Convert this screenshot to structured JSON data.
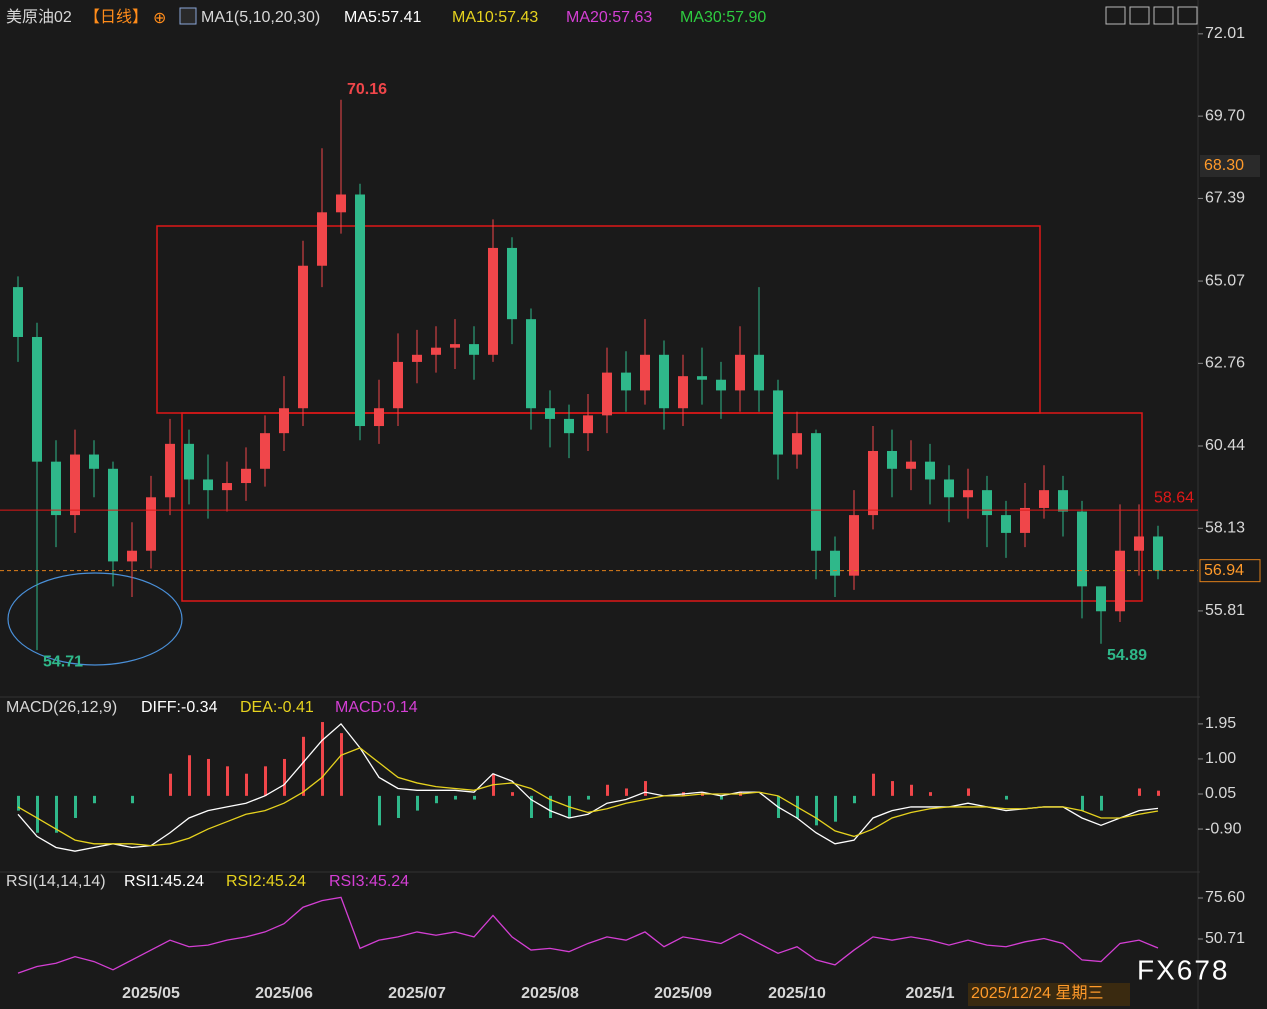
{
  "header": {
    "title": "美原油02",
    "period": "【日线】",
    "ma_label": "MA1(5,10,20,30)",
    "ma5": "MA5:57.41",
    "ma10": "MA10:57.43",
    "ma20": "MA20:57.63",
    "ma30": "MA30:57.90",
    "date": "2025/12/24 星期三",
    "brand": "FX678"
  },
  "chart_data": [
    {
      "type": "candlestick",
      "categories": [
        null,
        null,
        null,
        null,
        null,
        null,
        null,
        "2025/05",
        null,
        null,
        null,
        null,
        null,
        null,
        "2025/06",
        null,
        null,
        null,
        null,
        null,
        null,
        "2025/07",
        null,
        null,
        null,
        null,
        null,
        null,
        "2025/08",
        null,
        null,
        null,
        null,
        null,
        null,
        "2025/09",
        null,
        null,
        null,
        null,
        null,
        "2025/10",
        null,
        null,
        null,
        null,
        null,
        null,
        "2025/1",
        null,
        null,
        null,
        null,
        null,
        null,
        null,
        null,
        null,
        null,
        null,
        null
      ],
      "open": [
        64.9,
        63.5,
        60.0,
        58.5,
        60.2,
        59.8,
        57.2,
        57.5,
        59.0,
        60.5,
        59.5,
        59.2,
        59.4,
        59.8,
        60.8,
        61.5,
        65.5,
        67.0,
        67.5,
        61.0,
        61.5,
        62.8,
        63.0,
        63.2,
        63.3,
        63.0,
        66.0,
        64.0,
        61.5,
        61.2,
        60.8,
        61.3,
        62.5,
        62.0,
        63.0,
        61.5,
        62.4,
        62.3,
        62.0,
        63.0,
        62.0,
        60.2,
        60.8,
        57.5,
        56.8,
        58.5,
        60.3,
        59.8,
        60.0,
        59.5,
        59.0,
        59.2,
        58.5,
        58.0,
        58.7,
        59.2,
        58.6,
        56.5,
        55.8,
        57.5,
        57.9
      ],
      "high": [
        65.2,
        63.9,
        60.6,
        60.9,
        60.6,
        60.0,
        58.3,
        59.6,
        61.2,
        60.9,
        60.2,
        60.0,
        60.4,
        61.3,
        62.4,
        66.2,
        68.8,
        70.16,
        67.8,
        62.3,
        63.6,
        63.7,
        63.8,
        64.0,
        63.8,
        66.8,
        66.3,
        64.3,
        62.0,
        61.6,
        61.9,
        63.2,
        63.1,
        64.0,
        63.4,
        63.0,
        63.2,
        62.8,
        63.8,
        64.9,
        62.3,
        61.4,
        60.9,
        57.9,
        59.2,
        61.0,
        60.9,
        60.6,
        60.5,
        59.9,
        59.8,
        59.6,
        58.9,
        59.4,
        59.9,
        59.6,
        58.9,
        56.4,
        58.8,
        58.8,
        58.2
      ],
      "low": [
        62.8,
        54.71,
        57.6,
        58.0,
        59.0,
        56.5,
        56.2,
        57.0,
        58.5,
        58.8,
        58.4,
        58.6,
        58.9,
        59.3,
        60.3,
        61.0,
        64.9,
        66.4,
        60.6,
        60.5,
        61.0,
        62.2,
        62.5,
        62.6,
        62.3,
        62.8,
        63.3,
        60.9,
        60.4,
        60.1,
        60.3,
        60.8,
        61.4,
        61.6,
        60.9,
        61.0,
        61.6,
        61.2,
        61.4,
        61.4,
        59.5,
        59.8,
        56.7,
        56.2,
        56.4,
        58.1,
        59.0,
        59.2,
        58.8,
        58.3,
        58.4,
        57.6,
        57.3,
        57.6,
        58.4,
        57.9,
        55.6,
        54.89,
        55.5,
        56.8,
        56.7
      ],
      "close": [
        63.5,
        60.0,
        58.5,
        60.2,
        59.8,
        57.2,
        57.5,
        59.0,
        60.5,
        59.5,
        59.2,
        59.4,
        59.8,
        60.8,
        61.5,
        65.5,
        67.0,
        67.5,
        61.0,
        61.5,
        62.8,
        63.0,
        63.2,
        63.3,
        63.0,
        66.0,
        64.0,
        61.5,
        61.2,
        60.8,
        61.3,
        62.5,
        62.0,
        63.0,
        61.5,
        62.4,
        62.3,
        62.0,
        63.0,
        62.0,
        60.2,
        60.8,
        57.5,
        56.8,
        58.5,
        60.3,
        59.8,
        60.0,
        59.5,
        59.0,
        59.2,
        58.5,
        58.0,
        58.7,
        59.2,
        58.6,
        56.5,
        55.8,
        57.5,
        57.9,
        56.94
      ],
      "up_color": "#f0464a",
      "down_color": "#2fb88a",
      "ylim": [
        53.59,
        72.96
      ],
      "yticks": [
        {
          "value": 72.01,
          "label": "72.01"
        },
        {
          "value": 69.7,
          "label": "69.70"
        },
        {
          "value": 67.39,
          "label": "67.39"
        },
        {
          "value": 65.07,
          "label": "65.07"
        },
        {
          "value": 62.76,
          "label": "62.76"
        },
        {
          "value": 60.44,
          "label": "60.44"
        },
        {
          "value": 58.13,
          "label": "58.13"
        },
        {
          "value": 55.81,
          "label": "55.81"
        }
      ],
      "level": {
        "value": 58.64,
        "label": "58.64"
      },
      "marker": {
        "value": 68.3,
        "label": "68.30"
      }
    },
    {
      "type": "macd",
      "label": "MACD(26,12,9)",
      "diff_label": "DIFF:-0.34",
      "dea_label": "DEA:-0.41",
      "macd_label": "MACD:0.14",
      "diff": [
        -0.5,
        -1.1,
        -1.4,
        -1.5,
        -1.4,
        -1.3,
        -1.4,
        -1.35,
        -1.0,
        -0.6,
        -0.4,
        -0.3,
        -0.2,
        0.0,
        0.3,
        0.9,
        1.5,
        1.95,
        1.3,
        0.5,
        0.2,
        0.15,
        0.15,
        0.15,
        0.1,
        0.6,
        0.4,
        -0.1,
        -0.4,
        -0.6,
        -0.5,
        -0.2,
        -0.1,
        0.1,
        0.0,
        0.05,
        0.1,
        0.0,
        0.1,
        0.1,
        -0.3,
        -0.6,
        -1.0,
        -1.3,
        -1.2,
        -0.6,
        -0.4,
        -0.3,
        -0.3,
        -0.3,
        -0.2,
        -0.3,
        -0.4,
        -0.35,
        -0.3,
        -0.3,
        -0.6,
        -0.8,
        -0.6,
        -0.4,
        -0.34
      ],
      "dea": [
        -0.3,
        -0.6,
        -0.9,
        -1.2,
        -1.3,
        -1.3,
        -1.3,
        -1.35,
        -1.3,
        -1.15,
        -0.9,
        -0.7,
        -0.5,
        -0.4,
        -0.2,
        0.1,
        0.5,
        1.1,
        1.3,
        0.9,
        0.5,
        0.35,
        0.25,
        0.2,
        0.15,
        0.3,
        0.35,
        0.2,
        -0.1,
        -0.3,
        -0.45,
        -0.35,
        -0.2,
        -0.1,
        0.0,
        0.0,
        0.05,
        0.05,
        0.05,
        0.1,
        0.0,
        -0.3,
        -0.6,
        -0.95,
        -1.1,
        -0.9,
        -0.6,
        -0.45,
        -0.35,
        -0.3,
        -0.3,
        -0.3,
        -0.35,
        -0.35,
        -0.3,
        -0.3,
        -0.4,
        -0.6,
        -0.6,
        -0.5,
        -0.41
      ],
      "macd": [
        -0.4,
        -1.0,
        -1.0,
        -0.6,
        -0.2,
        0.0,
        -0.2,
        0.0,
        0.6,
        1.1,
        1.0,
        0.8,
        0.6,
        0.8,
        1.0,
        1.6,
        2.0,
        1.7,
        0.0,
        -0.8,
        -0.6,
        -0.4,
        -0.2,
        -0.1,
        -0.1,
        0.6,
        0.1,
        -0.6,
        -0.6,
        -0.6,
        -0.1,
        0.3,
        0.2,
        0.4,
        0.0,
        0.1,
        0.1,
        -0.1,
        0.1,
        0.0,
        -0.6,
        -0.6,
        -0.8,
        -0.7,
        -0.2,
        0.6,
        0.4,
        0.3,
        0.1,
        0.0,
        0.2,
        0.0,
        -0.1,
        0.0,
        0.0,
        0.0,
        -0.4,
        -0.4,
        0.0,
        0.2,
        0.14
      ],
      "diff_color": "#ffffff",
      "dea_color": "#e6d21e",
      "ylim": [
        -2.01,
        2.11
      ],
      "yticks": [
        1.95,
        {
          "value": 1.0,
          "label": "1.00"
        },
        0.05,
        {
          "value": -0.9,
          "label": "-0.90"
        }
      ]
    },
    {
      "type": "line",
      "label": "RSI(14,14,14)",
      "rsi1_label": "RSI1:45.24",
      "rsi2_label": "RSI2:45.24",
      "rsi3_label": "RSI3:45.24",
      "values": [
        30,
        34,
        36,
        40,
        37,
        32,
        38,
        44,
        50,
        46,
        47,
        50,
        52,
        55,
        60,
        70,
        74,
        76,
        45,
        50,
        52,
        55,
        53,
        55,
        52,
        65,
        52,
        44,
        45,
        43,
        48,
        52,
        50,
        55,
        46,
        52,
        50,
        48,
        54,
        48,
        42,
        46,
        38,
        35,
        44,
        52,
        50,
        52,
        50,
        47,
        50,
        47,
        46,
        49,
        51,
        48,
        38,
        37,
        48,
        50,
        45.24
      ],
      "color": "#d43fd4",
      "ylim": [
        22.78,
        80.46
      ],
      "yticks": [
        {
          "value": 75.6,
          "label": "75.60"
        },
        50.71
      ]
    }
  ]
}
